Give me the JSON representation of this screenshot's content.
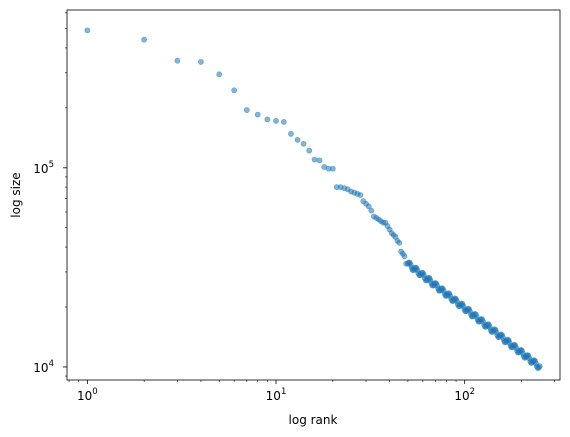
{
  "chart_data": {
    "type": "scatter",
    "title": "",
    "xlabel": "log rank",
    "ylabel": "log size",
    "xscale": "log",
    "yscale": "log",
    "xlim": [
      0.78,
      320
    ],
    "ylim": [
      8600,
      620000
    ],
    "grid": false,
    "marker_color": "#1f77b4",
    "marker_alpha": 0.55,
    "x_ticks": [
      {
        "value": 1,
        "base": "10",
        "exp": "0"
      },
      {
        "value": 10,
        "base": "10",
        "exp": "1"
      },
      {
        "value": 100,
        "base": "10",
        "exp": "2"
      }
    ],
    "y_ticks": [
      {
        "value": 10000,
        "base": "10",
        "exp": "4"
      },
      {
        "value": 100000,
        "base": "10",
        "exp": "5"
      }
    ],
    "series": [
      {
        "points": [
          [
            1,
            490000
          ],
          [
            2,
            440000
          ],
          [
            3,
            345000
          ],
          [
            4,
            340000
          ],
          [
            5,
            295000
          ],
          [
            6,
            245000
          ],
          [
            7,
            195000
          ],
          [
            8,
            185000
          ],
          [
            9,
            175000
          ],
          [
            10,
            172000
          ],
          [
            11,
            170000
          ],
          [
            12,
            148000
          ],
          [
            13,
            138000
          ],
          [
            14,
            132000
          ],
          [
            15,
            122000
          ],
          [
            16,
            110000
          ],
          [
            17,
            109000
          ],
          [
            18,
            101000
          ],
          [
            19,
            99000
          ],
          [
            20,
            99000
          ],
          [
            21,
            80000
          ],
          [
            22,
            80000
          ],
          [
            23,
            79000
          ],
          [
            24,
            78000
          ],
          [
            25,
            76000
          ],
          [
            26,
            75000
          ],
          [
            27,
            74000
          ],
          [
            28,
            73000
          ],
          [
            29,
            68000
          ],
          [
            30,
            66000
          ],
          [
            31,
            64000
          ],
          [
            32,
            61000
          ],
          [
            33,
            57000
          ],
          [
            34,
            56000
          ],
          [
            35,
            55000
          ],
          [
            36,
            54000
          ],
          [
            37,
            53000
          ],
          [
            38,
            53000
          ],
          [
            39,
            51000
          ],
          [
            40,
            49000
          ],
          [
            41,
            47000
          ],
          [
            42,
            46000
          ],
          [
            43,
            45000
          ],
          [
            44,
            43000
          ],
          [
            45,
            42000
          ],
          [
            46,
            38000
          ],
          [
            47,
            37000
          ],
          [
            48,
            36000
          ],
          [
            49,
            33000
          ],
          [
            50,
            33000
          ]
        ],
        "power_law": {
          "x_from": 50,
          "x_to": 250,
          "y_from": 33000,
          "y_to": 10000,
          "steps": 140
        }
      }
    ]
  }
}
